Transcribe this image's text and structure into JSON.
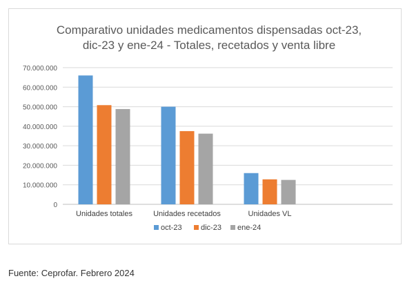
{
  "chart_data": {
    "type": "bar",
    "title_lines": [
      "Comparativo unidades medicamentos dispensadas oct-23,",
      "dic-23 y ene-24  - Totales, recetados y venta libre"
    ],
    "categories": [
      "Unidades totales",
      "Unidades recetados",
      "Unidades VL"
    ],
    "series": [
      {
        "name": "oct-23",
        "color": "#5b9bd5",
        "values": [
          66000000,
          50000000,
          16000000
        ]
      },
      {
        "name": "dic-23",
        "color": "#ed7d31",
        "values": [
          50800000,
          37500000,
          12800000
        ]
      },
      {
        "name": "ene-24",
        "color": "#a5a5a5",
        "values": [
          48800000,
          36200000,
          12500000
        ]
      }
    ],
    "yticks": [
      "0",
      "10.000.000",
      "20.000.000",
      "30.000.000",
      "40.000.000",
      "50.000.000",
      "60.000.000",
      "70.000.000"
    ],
    "ylim": [
      0,
      70000000
    ],
    "grid": true,
    "legend_position": "bottom"
  },
  "source": "Fuente: Ceprofar. Febrero 2024"
}
